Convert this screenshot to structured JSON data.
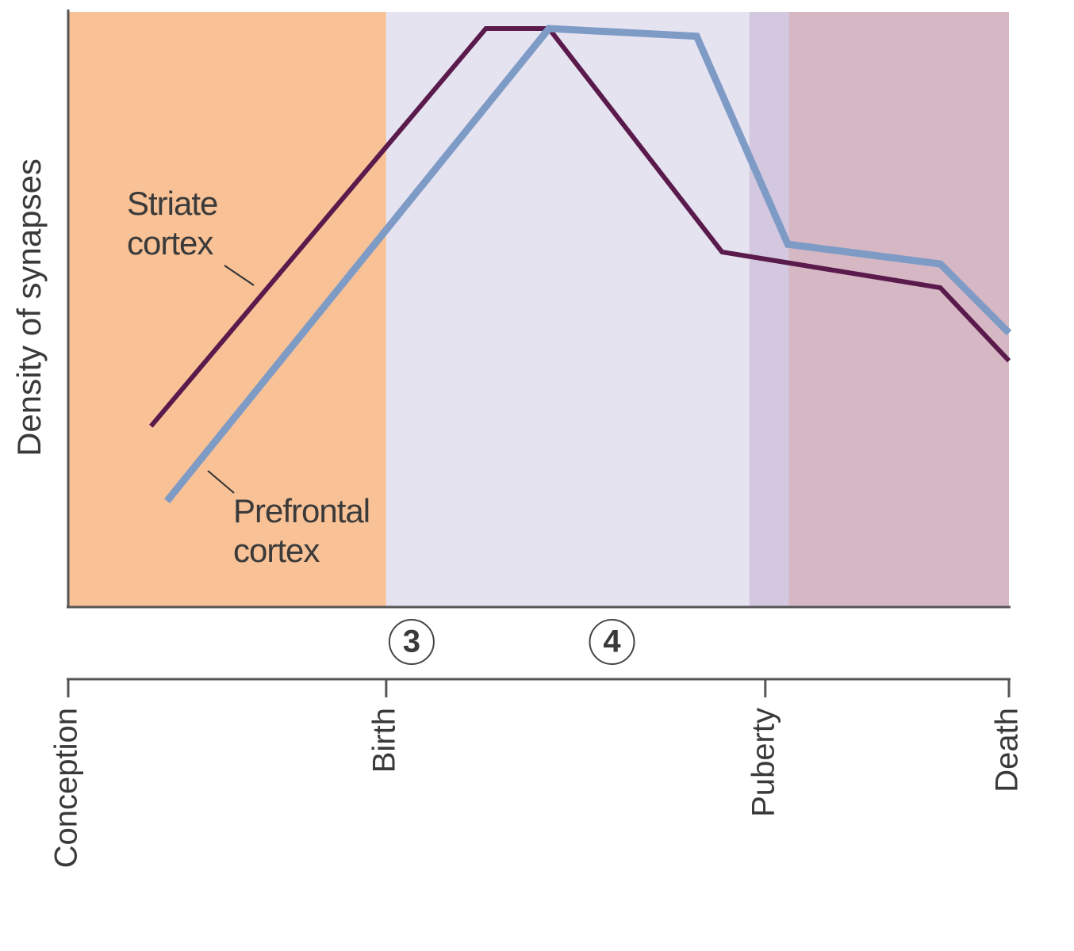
{
  "chart_data": {
    "type": "line",
    "y_label": "Density of synapses",
    "xlim": [
      0,
      100
    ],
    "ylim": [
      0,
      100
    ],
    "xticks": [
      {
        "value": 0,
        "label": "Conception"
      },
      {
        "value": 33.8,
        "label": "Birth"
      },
      {
        "value": 74.1,
        "label": "Puberty"
      },
      {
        "value": 100,
        "label": "Death"
      }
    ],
    "regions": [
      {
        "start": 0,
        "end": 33.8,
        "color": "#f8c196"
      },
      {
        "start": 33.8,
        "end": 72.4,
        "color": "#e6e3f1"
      },
      {
        "start": 72.4,
        "end": 76.6,
        "color": "#d3c8e0"
      },
      {
        "start": 76.6,
        "end": 100,
        "color": "#d6b8c4"
      }
    ],
    "annotations": [
      {
        "text": "3",
        "x": 36.5
      },
      {
        "text": "4",
        "x": 57.8
      }
    ],
    "series": [
      {
        "name": "Striate cortex",
        "color": "#5a1a4c",
        "x": [
          8.8,
          44.4,
          51.1,
          69.5,
          92.7,
          100
        ],
        "values": [
          30.3,
          97.2,
          97.2,
          59.6,
          53.6,
          41.3
        ]
      },
      {
        "name": "Prefrontal cortex",
        "color": "#7e9bc6",
        "x": [
          10.5,
          51.1,
          66.8,
          76.5,
          92.7,
          100
        ],
        "values": [
          17.7,
          97.2,
          95.9,
          60.9,
          57.6,
          46.0
        ]
      }
    ]
  }
}
